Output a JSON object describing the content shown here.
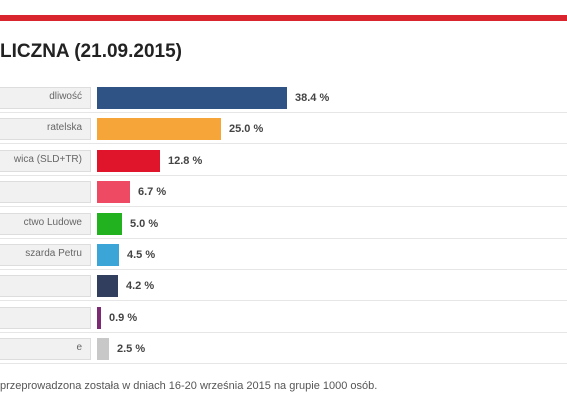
{
  "title": "LICZNA (21.09.2015)",
  "footnote": "przeprowadzona została w dniach 16-20 września 2015 na grupie 1000 osób.",
  "colors": {
    "accent": "#d9262e"
  },
  "chart_data": {
    "type": "bar",
    "orientation": "horizontal",
    "categories": [
      "dliwość",
      "ratelska",
      "wica (SLD+TR)",
      "",
      "ctwo Ludowe",
      "szarda Petru",
      "",
      "",
      "e"
    ],
    "values": [
      38.4,
      25.0,
      12.8,
      6.7,
      5.0,
      4.5,
      4.2,
      0.9,
      2.5
    ],
    "value_labels": [
      "38.4 %",
      "25.0 %",
      "12.8 %",
      "6.7 %",
      "5.0 %",
      "4.5 %",
      "4.2 %",
      "0.9 %",
      "2.5 %"
    ],
    "colors": [
      "#2f5385",
      "#f6a539",
      "#e0142a",
      "#ef4a63",
      "#22b11f",
      "#3aa5d6",
      "#323e5e",
      "#7b2a73",
      "#c8c8c8"
    ],
    "xlim": [
      0,
      38.4
    ]
  }
}
